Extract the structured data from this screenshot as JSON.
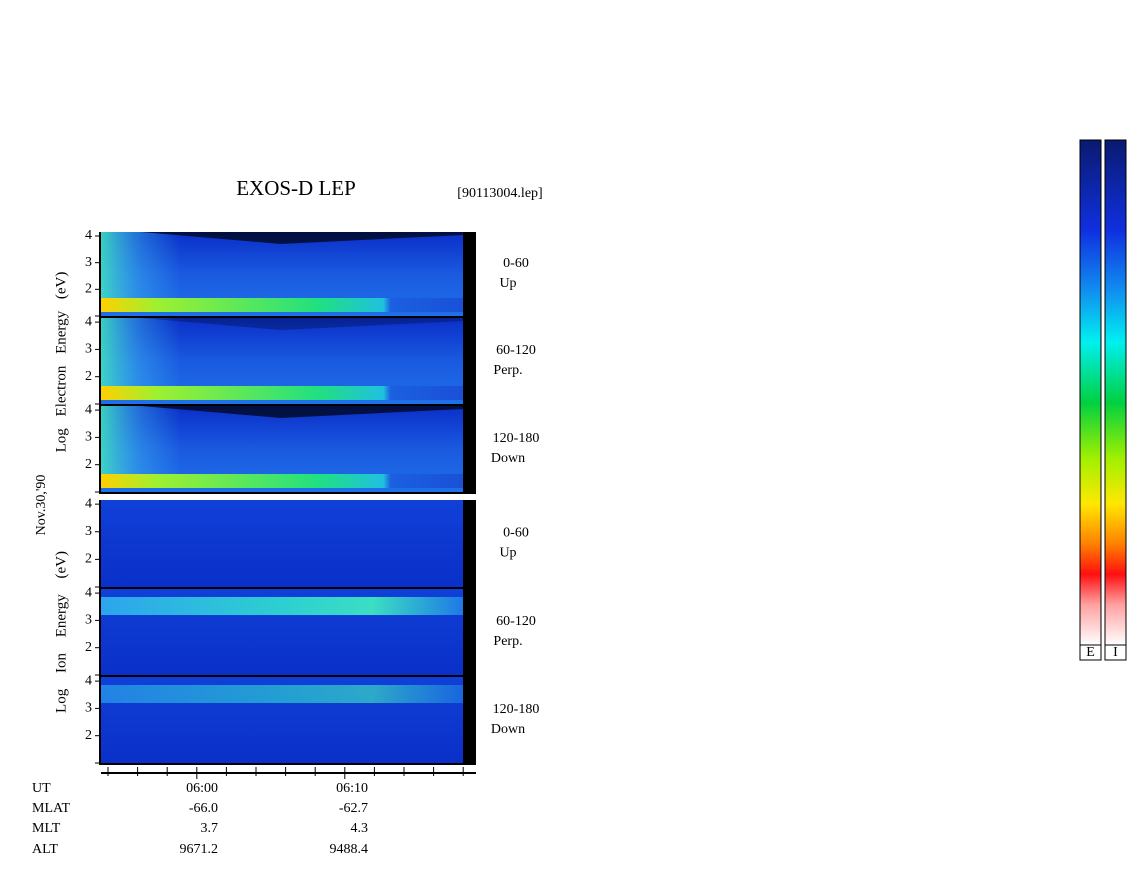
{
  "title": "EXOS-D LEP",
  "file": "[90113004.lep]",
  "date": "Nov.30,'90",
  "y_labels": [
    "Log Electron Energy (eV)",
    "Log Ion Energy (eV)"
  ],
  "chart_data": [
    {
      "type": "spectrogram",
      "species": "electron",
      "angle": "0-60",
      "direction": "Up",
      "ylim": [
        1,
        4.15
      ],
      "yticks": [
        2,
        3,
        4
      ]
    },
    {
      "type": "spectrogram",
      "species": "electron",
      "angle": "60-120",
      "direction": "Perp.",
      "ylim": [
        1,
        4.15
      ],
      "yticks": [
        2,
        3,
        4
      ]
    },
    {
      "type": "spectrogram",
      "species": "electron",
      "angle": "120-180",
      "direction": "Down",
      "ylim": [
        1,
        4.15
      ],
      "yticks": [
        2,
        3,
        4
      ]
    },
    {
      "type": "spectrogram",
      "species": "ion",
      "angle": "0-60",
      "direction": "Up",
      "ylim": [
        1,
        4.15
      ],
      "yticks": [
        2,
        3,
        4
      ]
    },
    {
      "type": "spectrogram",
      "species": "ion",
      "angle": "60-120",
      "direction": "Perp.",
      "ylim": [
        1,
        4.15
      ],
      "yticks": [
        2,
        3,
        4
      ]
    },
    {
      "type": "spectrogram",
      "species": "ion",
      "angle": "120-180",
      "direction": "Down",
      "ylim": [
        1,
        4.15
      ],
      "yticks": [
        2,
        3,
        4
      ]
    }
  ],
  "ephemeris": [
    {
      "label": "UT",
      "values": [
        "06:00",
        "06:10"
      ]
    },
    {
      "label": "MLAT",
      "values": [
        "-66.0",
        "-62.7"
      ]
    },
    {
      "label": "MLT",
      "values": [
        "3.7",
        "4.3"
      ]
    },
    {
      "label": "ALT",
      "values": [
        "9671.2",
        "9488.4"
      ]
    }
  ],
  "colorbars": [
    "E",
    "I"
  ]
}
